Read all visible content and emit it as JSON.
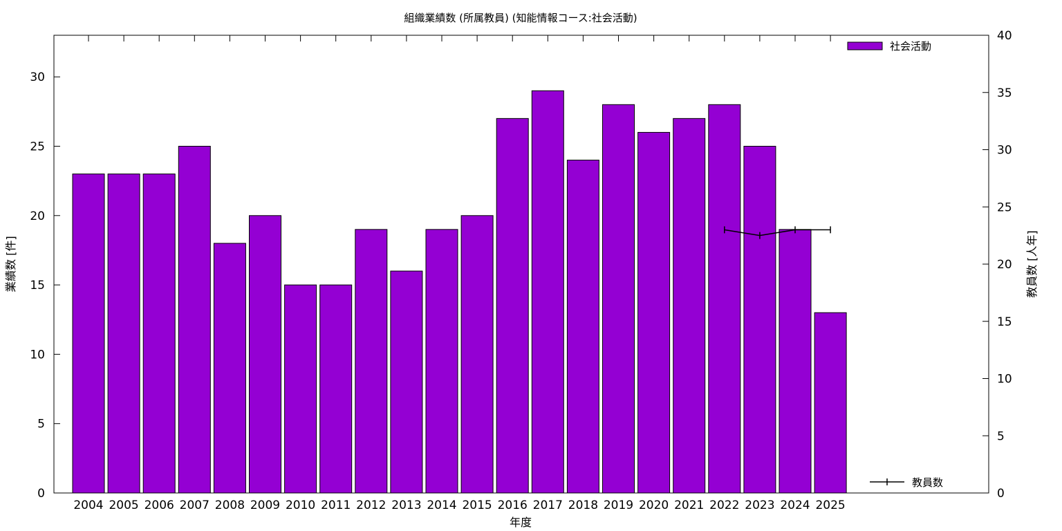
{
  "chart_data": {
    "type": "bar",
    "title": "組織業績数 (所属教員) (知能情報コース:社会活動)",
    "xlabel": "年度",
    "ylabel": "業績数 [件]",
    "y2label": "教員数 [人年]",
    "categories": [
      "2004",
      "2005",
      "2006",
      "2007",
      "2008",
      "2009",
      "2010",
      "2011",
      "2012",
      "2013",
      "2014",
      "2015",
      "2016",
      "2017",
      "2018",
      "2019",
      "2020",
      "2021",
      "2022",
      "2023",
      "2024",
      "2025"
    ],
    "series": [
      {
        "name": "社会活動",
        "type": "bar",
        "axis": "left",
        "color": "#9400d3",
        "values": [
          23,
          23,
          23,
          25,
          18,
          20,
          15,
          15,
          19,
          16,
          19,
          20,
          27,
          29,
          24,
          28,
          26,
          27,
          28,
          25,
          19,
          13
        ]
      },
      {
        "name": "教員数",
        "type": "line",
        "axis": "right",
        "color": "#000000",
        "x": [
          "2022",
          "2023",
          "2024",
          "2025"
        ],
        "values": [
          23,
          22.5,
          23,
          23
        ]
      }
    ],
    "ylim": [
      0,
      33
    ],
    "y2lim": [
      0,
      40
    ],
    "yticks": [
      0,
      5,
      10,
      15,
      20,
      25,
      30
    ],
    "y2ticks": [
      0,
      5,
      10,
      15,
      20,
      25,
      30,
      35,
      40
    ],
    "legend": [
      "top-right",
      "bottom-right"
    ],
    "grid": false
  }
}
